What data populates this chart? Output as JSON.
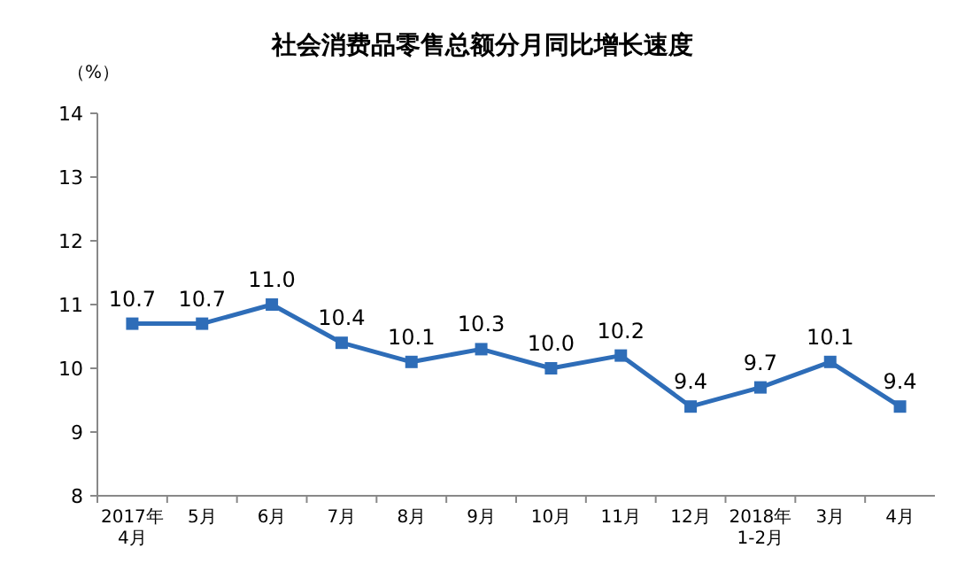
{
  "chart_data": {
    "type": "line",
    "title": "社会消费品零售总额分月同比增长速度",
    "ylabel": "（%）",
    "categories": [
      "2017年\n4月",
      "5月",
      "6月",
      "7月",
      "8月",
      "9月",
      "10月",
      "11月",
      "12月",
      "2018年\n1-2月",
      "3月",
      "4月"
    ],
    "series": [
      {
        "color": "#2e6db8",
        "values": [
          10.7,
          10.7,
          11.0,
          10.4,
          10.1,
          10.3,
          10.0,
          10.2,
          9.4,
          9.7,
          10.1,
          9.4
        ],
        "value_labels": [
          "10.7",
          "10.7",
          "11.0",
          "10.4",
          "10.1",
          "10.3",
          "10.0",
          "10.2",
          "9.4",
          "9.7",
          "10.1",
          "9.4"
        ]
      }
    ],
    "ylim": [
      8,
      14
    ],
    "yticks": [
      8,
      9,
      10,
      11,
      12,
      13,
      14
    ],
    "marker": "square",
    "grid": false
  }
}
